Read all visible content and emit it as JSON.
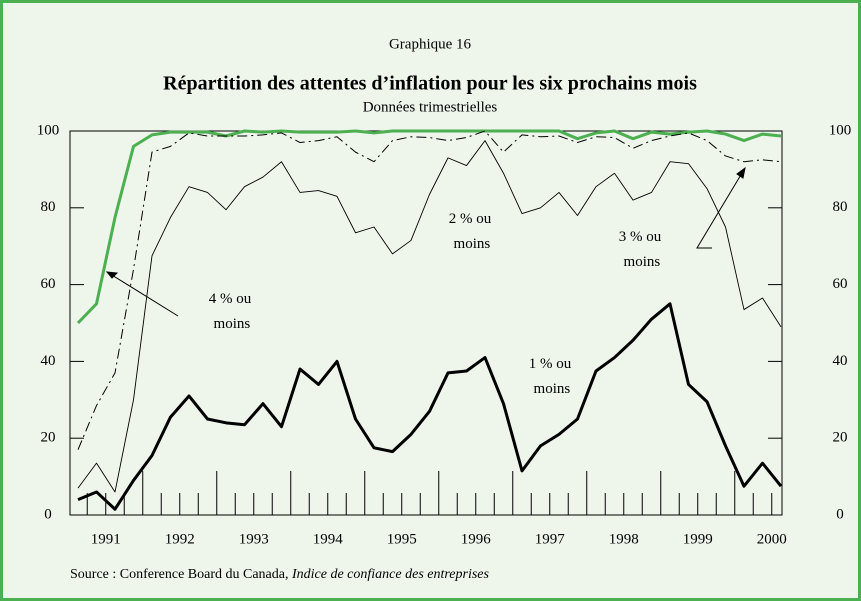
{
  "chart_data": {
    "type": "line",
    "kicker": "Graphique 16",
    "title": "Répartition des attentes d’inflation pour les six prochains mois",
    "subtitle": "Données trimestrielles",
    "source": "Source : Conference Board du Canada, ",
    "source_title": "Indice de confiance des entreprises",
    "categories": [
      null,
      "1991",
      null,
      null,
      null,
      "1992",
      null,
      null,
      null,
      "1993",
      null,
      null,
      null,
      "1994",
      null,
      null,
      null,
      "1995",
      null,
      null,
      null,
      "1996",
      null,
      null,
      null,
      "1997",
      null,
      null,
      null,
      "1998",
      null,
      null,
      null,
      "1999",
      null,
      null,
      null,
      "2000",
      null
    ],
    "ylim": [
      0,
      100
    ],
    "yticks": [
      0,
      20,
      40,
      60,
      80,
      100
    ],
    "grid": false,
    "series": [
      {
        "name": "4 % ou moins",
        "color": "#4caf50",
        "values": [
          50,
          55,
          77.5,
          96,
          99,
          99.7,
          99.7,
          99.7,
          98.7,
          100,
          99.7,
          100,
          99.7,
          99.7,
          99.7,
          100,
          99.5,
          100,
          100,
          100,
          100,
          100,
          100,
          100,
          100,
          100,
          100,
          98,
          99.5,
          100,
          98,
          99.7,
          99.2,
          99.7,
          100,
          99.2,
          97.5,
          99.2,
          98.7
        ]
      },
      {
        "name": "3 % ou moins",
        "color": "#000000",
        "values": [
          17,
          28.5,
          37,
          64,
          94.5,
          96,
          99.5,
          98.7,
          98.7,
          98.7,
          99,
          99.5,
          97,
          97.5,
          98.5,
          94.5,
          92,
          97.5,
          98.5,
          98.3,
          97.5,
          98.3,
          100,
          94.5,
          99,
          98.5,
          98.7,
          97,
          98.5,
          98.3,
          95.5,
          97.5,
          98.7,
          99.5,
          97.5,
          93.5,
          92,
          92.5,
          92
        ]
      },
      {
        "name": "2 % ou moins",
        "color": "#000000",
        "values": [
          7,
          13.5,
          6,
          30,
          67.5,
          77.5,
          85.5,
          84,
          79.5,
          85.5,
          88,
          92,
          84,
          84.5,
          83,
          73.5,
          75,
          68,
          71.5,
          83.5,
          93,
          91,
          97.5,
          89,
          78.5,
          80,
          84,
          78,
          85.5,
          89,
          82,
          84,
          92,
          91.5,
          85,
          75,
          53.5,
          56.5,
          49
        ]
      },
      {
        "name": "1 % ou moins",
        "color": "#000000",
        "values": [
          4,
          6,
          1.5,
          9,
          15.5,
          25.5,
          31,
          25,
          24,
          23.5,
          29,
          23,
          38,
          34,
          40,
          25,
          17.5,
          16.5,
          21,
          27,
          37,
          37.5,
          41,
          29,
          11.5,
          18,
          21,
          25,
          37.5,
          41,
          45.5,
          51,
          55,
          34,
          29.5,
          18,
          7.5,
          13.5,
          7.5
        ]
      }
    ]
  }
}
